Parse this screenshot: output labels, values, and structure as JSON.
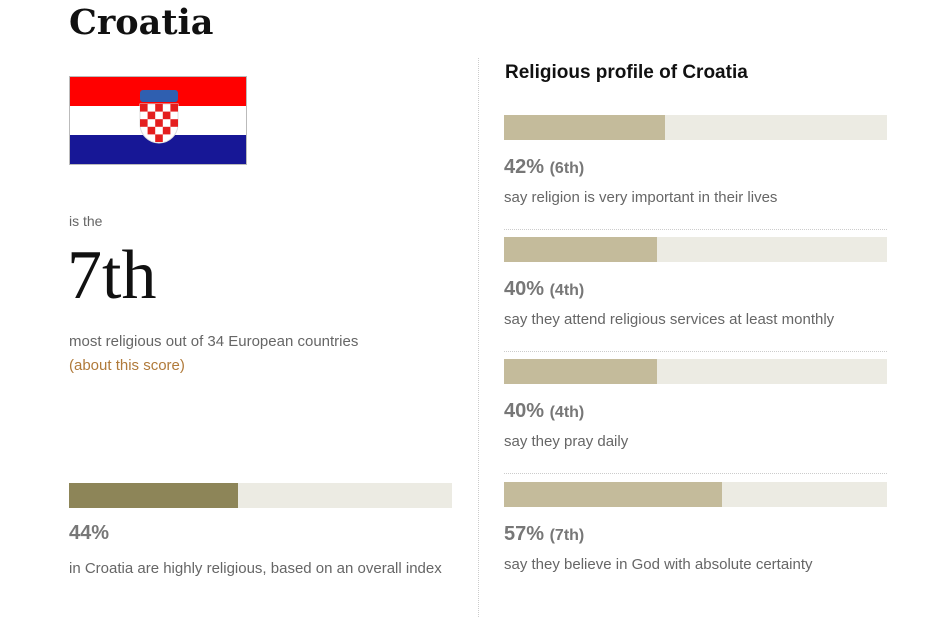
{
  "country": "Croatia",
  "flag": {
    "colors": [
      "#ff0000",
      "#ffffff",
      "#171796"
    ]
  },
  "score": {
    "prefix": "is the",
    "rank": "7th",
    "suffix": "most religious out of 34 European countries",
    "about_link": "(about this score)"
  },
  "overall": {
    "percent": 44,
    "percent_label": "44%",
    "description": "in Croatia are highly religious, based on an overall index"
  },
  "profile": {
    "title": "Religious profile of Croatia",
    "items": [
      {
        "percent": 42,
        "percent_label": "42%",
        "rank": "(6th)",
        "description": "say religion is very important in their lives"
      },
      {
        "percent": 40,
        "percent_label": "40%",
        "rank": "(4th)",
        "description": "say they attend religious services at least monthly"
      },
      {
        "percent": 40,
        "percent_label": "40%",
        "rank": "(4th)",
        "description": "say they pray daily"
      },
      {
        "percent": 57,
        "percent_label": "57%",
        "rank": "(7th)",
        "description": "say they believe in God with absolute certainty"
      }
    ]
  }
}
